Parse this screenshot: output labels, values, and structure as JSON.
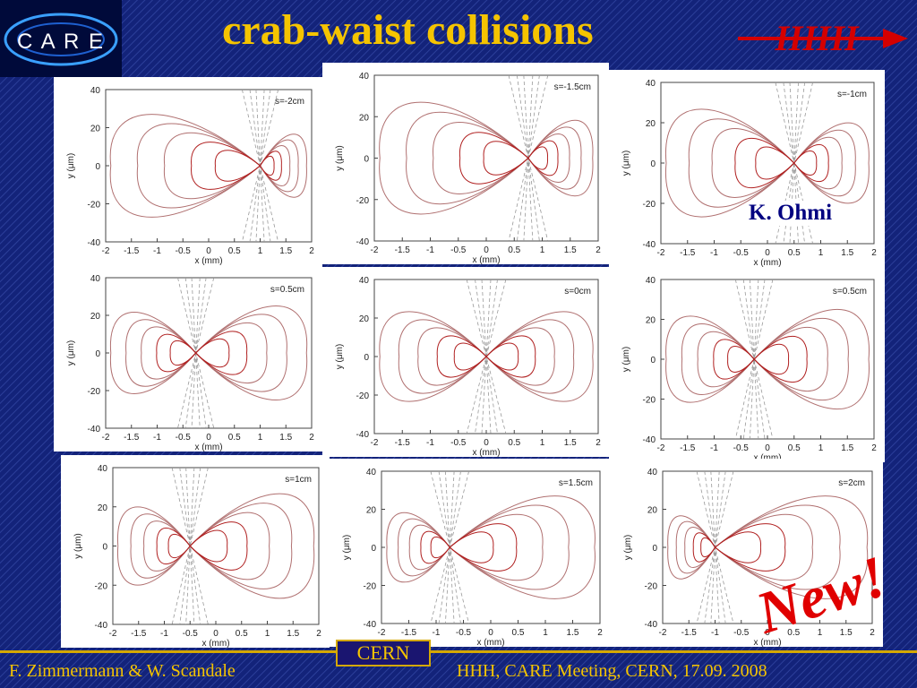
{
  "slide": {
    "title": "crab-waist collisions",
    "logo_text": "C A R E",
    "hhh_logo": "HHH",
    "author_credit": "K. Ohmi",
    "stamp": "New!",
    "cern_logo": "CERN",
    "footer_left": "F. Zimmermann & W. Scandale",
    "footer_right": "HHH, CARE Meeting, CERN, 17.09. 2008"
  },
  "plots": [
    {
      "label": "s=-2cm",
      "center_x": 1.0
    },
    {
      "label": "s=-1.5cm",
      "center_x": 0.75
    },
    {
      "label": "s=-1cm",
      "center_x": 0.5
    },
    {
      "label": "s=0.5cm",
      "center_x": -0.25
    },
    {
      "label": "s=0cm",
      "center_x": 0.0
    },
    {
      "label": "s=0.5cm",
      "center_x": -0.25
    },
    {
      "label": "s=1cm",
      "center_x": -0.5
    },
    {
      "label": "s=1.5cm",
      "center_x": -0.75
    },
    {
      "label": "s=2cm",
      "center_x": -1.0
    }
  ],
  "axes": {
    "xlabel": "x (mm)",
    "ylabel": "y (μm)",
    "xticks": [
      "-2",
      "-1.5",
      "-1",
      "-0.5",
      "0",
      "0.5",
      "1",
      "1.5",
      "2"
    ],
    "yticks": [
      "40",
      "20",
      "0",
      "-20",
      "-40"
    ],
    "xlim": [
      -2,
      2
    ],
    "ylim": [
      -40,
      40
    ]
  },
  "colors": {
    "title": "#f5c400",
    "contour": "#b07070",
    "contour_dense": "#b02020",
    "footer": "#f5c400",
    "hhh": "#d40000"
  }
}
